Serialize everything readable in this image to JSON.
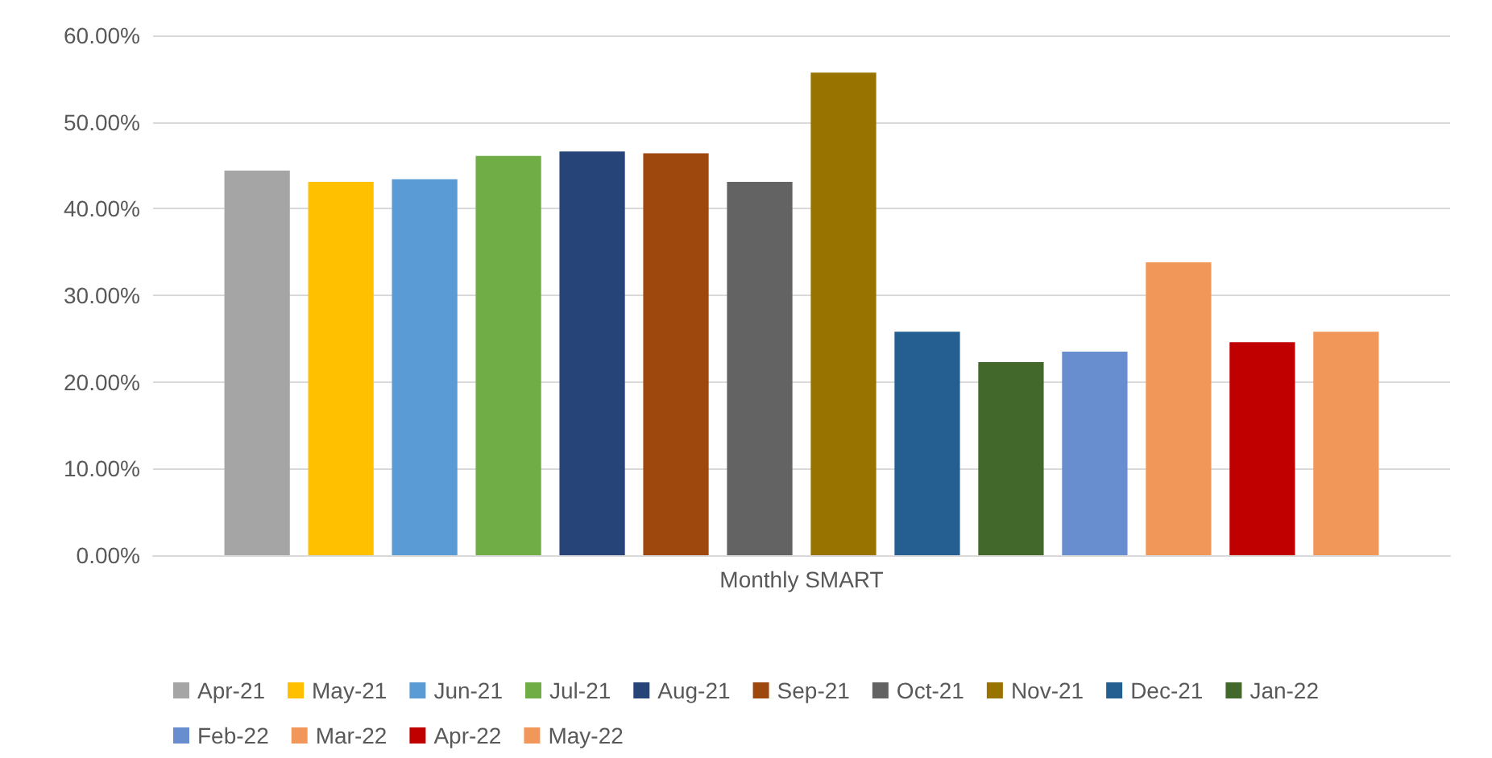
{
  "chart_data": {
    "type": "bar",
    "categories": [
      "Monthly SMART"
    ],
    "series": [
      {
        "name": "Apr-21",
        "color": "#a5a5a5",
        "values": [
          44.4
        ]
      },
      {
        "name": "May-21",
        "color": "#ffc000",
        "values": [
          43.1
        ]
      },
      {
        "name": "Jun-21",
        "color": "#5b9bd5",
        "values": [
          43.4
        ]
      },
      {
        "name": "Jul-21",
        "color": "#70ad47",
        "values": [
          46.1
        ]
      },
      {
        "name": "Aug-21",
        "color": "#264478",
        "values": [
          46.6
        ]
      },
      {
        "name": "Sep-21",
        "color": "#9e480e",
        "values": [
          46.4
        ]
      },
      {
        "name": "Oct-21",
        "color": "#636363",
        "values": [
          43.1
        ]
      },
      {
        "name": "Nov-21",
        "color": "#997300",
        "values": [
          55.7
        ]
      },
      {
        "name": "Dec-21",
        "color": "#255e91",
        "values": [
          25.8
        ]
      },
      {
        "name": "Jan-22",
        "color": "#43682b",
        "values": [
          22.3
        ]
      },
      {
        "name": "Feb-22",
        "color": "#698ed0",
        "values": [
          23.5
        ]
      },
      {
        "name": "Mar-22",
        "color": "#f1975a",
        "values": [
          33.8
        ]
      },
      {
        "name": "Apr-22",
        "color": "#c00000",
        "values": [
          24.6
        ]
      },
      {
        "name": "May-22",
        "color": "#f1975a",
        "values": [
          25.8
        ]
      }
    ],
    "ylim": [
      0,
      60
    ],
    "yticks": [
      {
        "value": 0,
        "label": "0.00%"
      },
      {
        "value": 10,
        "label": "10.00%"
      },
      {
        "value": 20,
        "label": "20.00%"
      },
      {
        "value": 30,
        "label": "30.00%"
      },
      {
        "value": 40,
        "label": "40.00%"
      },
      {
        "value": 50,
        "label": "50.00%"
      },
      {
        "value": 60,
        "label": "60.00%"
      }
    ],
    "grid": "y",
    "legend": "bottom"
  }
}
